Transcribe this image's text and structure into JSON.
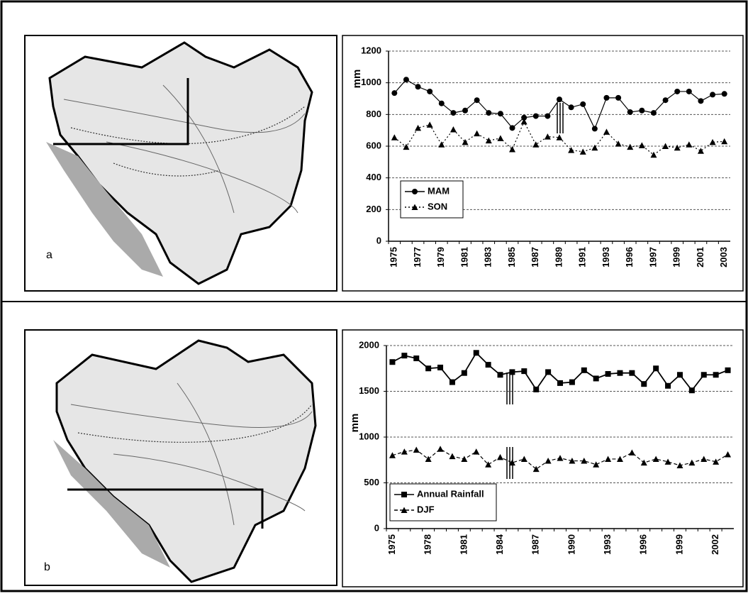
{
  "chart_data": [
    {
      "type": "line",
      "panel_label": "a",
      "y_label": "mm",
      "categories": [
        "1975",
        null,
        "1977",
        null,
        "1979",
        null,
        "1981",
        null,
        "1983",
        null,
        "1985",
        null,
        "1987",
        null,
        "1989",
        null,
        "1991",
        null,
        "1993",
        null,
        "1996",
        null,
        "1997",
        null,
        "1999",
        null,
        "2001",
        null,
        "2003"
      ],
      "series": [
        {
          "name": "MAM",
          "color": "#000000",
          "marker": "circle",
          "line_style": "solid",
          "values": [
            935,
            1020,
            975,
            945,
            870,
            810,
            825,
            890,
            810,
            805,
            715,
            780,
            790,
            790,
            895,
            845,
            865,
            710,
            905,
            905,
            815,
            825,
            810,
            890,
            945,
            945,
            885,
            925,
            930
          ]
        },
        {
          "name": "SON",
          "color": "#000000",
          "marker": "triangle",
          "line_style": "dotted",
          "values": [
            655,
            595,
            715,
            735,
            610,
            705,
            625,
            680,
            635,
            650,
            580,
            755,
            610,
            660,
            655,
            575,
            565,
            590,
            690,
            615,
            595,
            605,
            545,
            600,
            590,
            610,
            570,
            625,
            630
          ]
        }
      ],
      "ylim": [
        0,
        1200
      ],
      "yticks": [
        0,
        200,
        400,
        600,
        800,
        1000,
        1200
      ],
      "grid": true,
      "legend": "lower left"
    },
    {
      "type": "line",
      "panel_label": "b",
      "y_label": "mm",
      "categories": [
        "1975",
        null,
        null,
        "1978",
        null,
        null,
        "1981",
        null,
        null,
        "1984",
        null,
        null,
        "1987",
        null,
        null,
        "1990",
        null,
        null,
        "1993",
        null,
        null,
        "1996",
        null,
        null,
        "1999",
        null,
        null,
        "2002",
        null
      ],
      "series": [
        {
          "name": "Annual Rainfall",
          "color": "#000000",
          "marker": "square",
          "line_style": "solid",
          "values": [
            1820,
            1890,
            1860,
            1750,
            1760,
            1600,
            1700,
            1920,
            1790,
            1680,
            1710,
            1720,
            1520,
            1710,
            1590,
            1600,
            1730,
            1640,
            1690,
            1700,
            1700,
            1580,
            1750,
            1560,
            1680,
            1510,
            1680,
            1680,
            1730
          ]
        },
        {
          "name": "DJF",
          "color": "#000000",
          "marker": "triangle",
          "line_style": "dashed",
          "values": [
            800,
            840,
            860,
            760,
            870,
            790,
            760,
            840,
            700,
            780,
            720,
            760,
            650,
            740,
            770,
            740,
            740,
            700,
            760,
            760,
            830,
            720,
            760,
            730,
            690,
            720,
            760,
            730,
            810
          ]
        }
      ],
      "ylim": [
        0,
        2000
      ],
      "yticks": [
        0,
        500,
        1000,
        1500,
        2000
      ],
      "grid": true,
      "legend": "lower left"
    }
  ]
}
